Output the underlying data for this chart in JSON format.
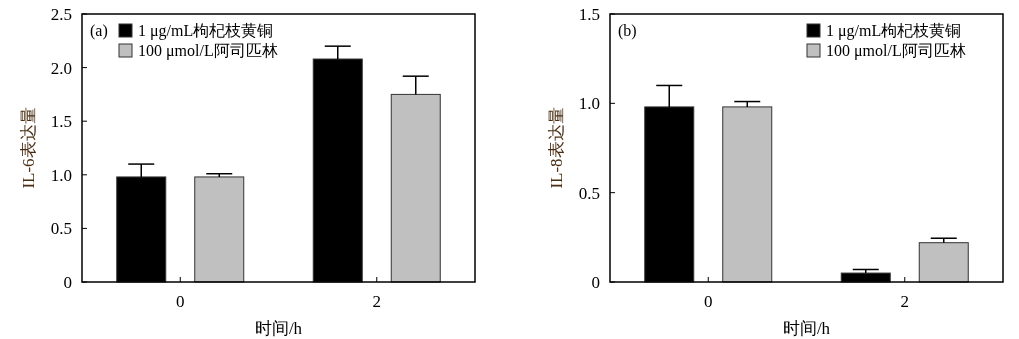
{
  "chart_data": [
    {
      "type": "bar",
      "annotations": [
        "(a)"
      ],
      "xlabel": "时间/h",
      "ylabel": "IL-6表达量",
      "categories": [
        "0",
        "2"
      ],
      "ylim": [
        0,
        2.5
      ],
      "yticks": [
        0,
        {
          "value": 0.5,
          "label": "0.5"
        },
        {
          "value": 1,
          "label": "1.0"
        },
        {
          "value": 1.5,
          "label": "1.5"
        },
        {
          "value": 2,
          "label": "2.0"
        },
        {
          "value": 2.5,
          "label": "2.5"
        }
      ],
      "legend": "top left",
      "series": [
        {
          "name": "1 μg/mL枸杞枝黄铜",
          "color": "#000000",
          "values": [
            0.98,
            2.08
          ],
          "errors": [
            [
              0.98,
              1.1
            ],
            [
              2.08,
              2.2
            ]
          ]
        },
        {
          "name": "100 μmol/L阿司匹林",
          "color": "#c0c0c0",
          "values": [
            0.98,
            1.75
          ],
          "errors": [
            [
              0.98,
              1.01
            ],
            [
              1.75,
              1.92
            ]
          ]
        }
      ]
    },
    {
      "type": "bar",
      "annotations": [
        "(b)"
      ],
      "xlabel": "时间/h",
      "ylabel": "IL-8表达量",
      "categories": [
        "0",
        "2"
      ],
      "ylim": [
        0,
        1.5
      ],
      "yticks": [
        0,
        {
          "value": 0.5,
          "label": "0.5"
        },
        {
          "value": 1,
          "label": "1.0"
        },
        {
          "value": 1.5,
          "label": "1.5"
        }
      ],
      "legend": "top right",
      "series": [
        {
          "name": "1 μg/mL枸杞枝黄铜",
          "color": "#000000",
          "values": [
            0.98,
            0.05
          ],
          "errors": [
            [
              0.98,
              1.1
            ],
            [
              0.05,
              0.07
            ]
          ]
        },
        {
          "name": "100 μmol/L阿司匹林",
          "color": "#c0c0c0",
          "values": [
            0.98,
            0.22
          ],
          "errors": [
            [
              0.98,
              1.01
            ],
            [
              0.22,
              0.245
            ]
          ]
        }
      ]
    }
  ]
}
